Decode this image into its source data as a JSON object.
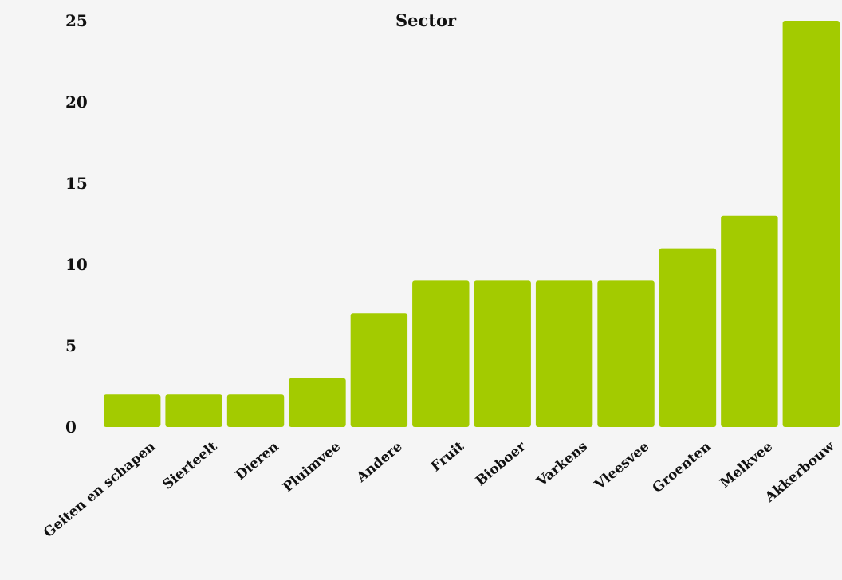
{
  "chart_data": {
    "type": "bar",
    "title": "Sector",
    "xlabel": "",
    "ylabel": "",
    "categories": [
      "Geiten en schapen",
      "Sierteelt",
      "Dieren",
      "Pluimvee",
      "Andere",
      "Fruit",
      "Bioboer",
      "Varkens",
      "Vleesvee",
      "Groenten",
      "Melkvee",
      "Akkerbouw"
    ],
    "values": [
      2,
      2,
      2,
      3,
      7,
      9,
      9,
      9,
      9,
      11,
      13,
      25
    ],
    "ylim": [
      0,
      25
    ],
    "yticks": [
      0,
      5,
      10,
      15,
      20,
      25
    ],
    "grid": false,
    "legend": "none",
    "colors": {
      "bar": "#a3cb00",
      "text": "#111111",
      "background": "#f5f5f5"
    }
  }
}
